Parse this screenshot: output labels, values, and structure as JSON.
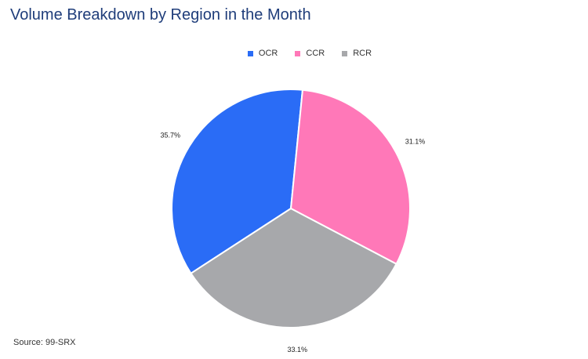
{
  "chart_data": {
    "type": "pie",
    "title": "Volume Breakdown by Region in the Month",
    "categories": [
      "OCR",
      "CCR",
      "RCR"
    ],
    "values": [
      35.7,
      31.1,
      33.1
    ],
    "value_labels": [
      "35.7%",
      "31.1%",
      "33.1%"
    ],
    "colors": [
      "#2a6cf6",
      "#ff78b8",
      "#a7a8ab"
    ],
    "legend_position": "top"
  },
  "source": "Source: 99-SRX"
}
